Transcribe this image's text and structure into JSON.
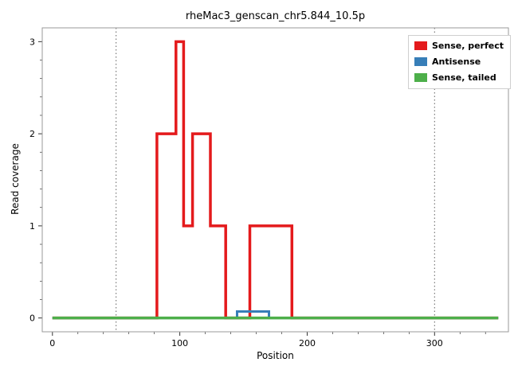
{
  "figure": {
    "background": "#ffffff",
    "panel_border_color": "#999999",
    "tick_color": "#333333",
    "vline_color": "#606060"
  },
  "chart_data": {
    "type": "line",
    "title": "rheMac3_genscan_chr5.844_10.5p",
    "xlabel": "Position",
    "ylabel": "Read coverage",
    "xlim": [
      -8,
      358
    ],
    "ylim": [
      -0.15,
      3.15
    ],
    "x_ticks": [
      0,
      100,
      200,
      300
    ],
    "y_ticks": [
      0,
      1,
      2,
      3
    ],
    "x_minor_step": 20,
    "y_minor_step": 0.2,
    "grid": "off",
    "legend_position": "top-right-inside",
    "vlines": [
      {
        "x": 50,
        "style": "dotted"
      },
      {
        "x": 300,
        "style": "dotted"
      }
    ],
    "series": [
      {
        "name": "Sense, perfect",
        "color": "#e41a1c",
        "width": 3.5,
        "points": [
          [
            0,
            0
          ],
          [
            82,
            0
          ],
          [
            82,
            2
          ],
          [
            97,
            2
          ],
          [
            97,
            3
          ],
          [
            103,
            3
          ],
          [
            103,
            1
          ],
          [
            110,
            1
          ],
          [
            110,
            2
          ],
          [
            124,
            2
          ],
          [
            124,
            1
          ],
          [
            136,
            1
          ],
          [
            136,
            0
          ],
          [
            155,
            0
          ],
          [
            155,
            1
          ],
          [
            188,
            1
          ],
          [
            188,
            0
          ],
          [
            350,
            0
          ]
        ]
      },
      {
        "name": "Antisense",
        "color": "#377eb8",
        "width": 3,
        "points": [
          [
            0,
            0
          ],
          [
            145,
            0
          ],
          [
            145,
            0.07
          ],
          [
            170,
            0.07
          ],
          [
            170,
            0
          ],
          [
            350,
            0
          ]
        ]
      },
      {
        "name": "Sense, tailed",
        "color": "#4daf4a",
        "width": 3.5,
        "points": [
          [
            0,
            0
          ],
          [
            350,
            0
          ]
        ]
      }
    ]
  }
}
